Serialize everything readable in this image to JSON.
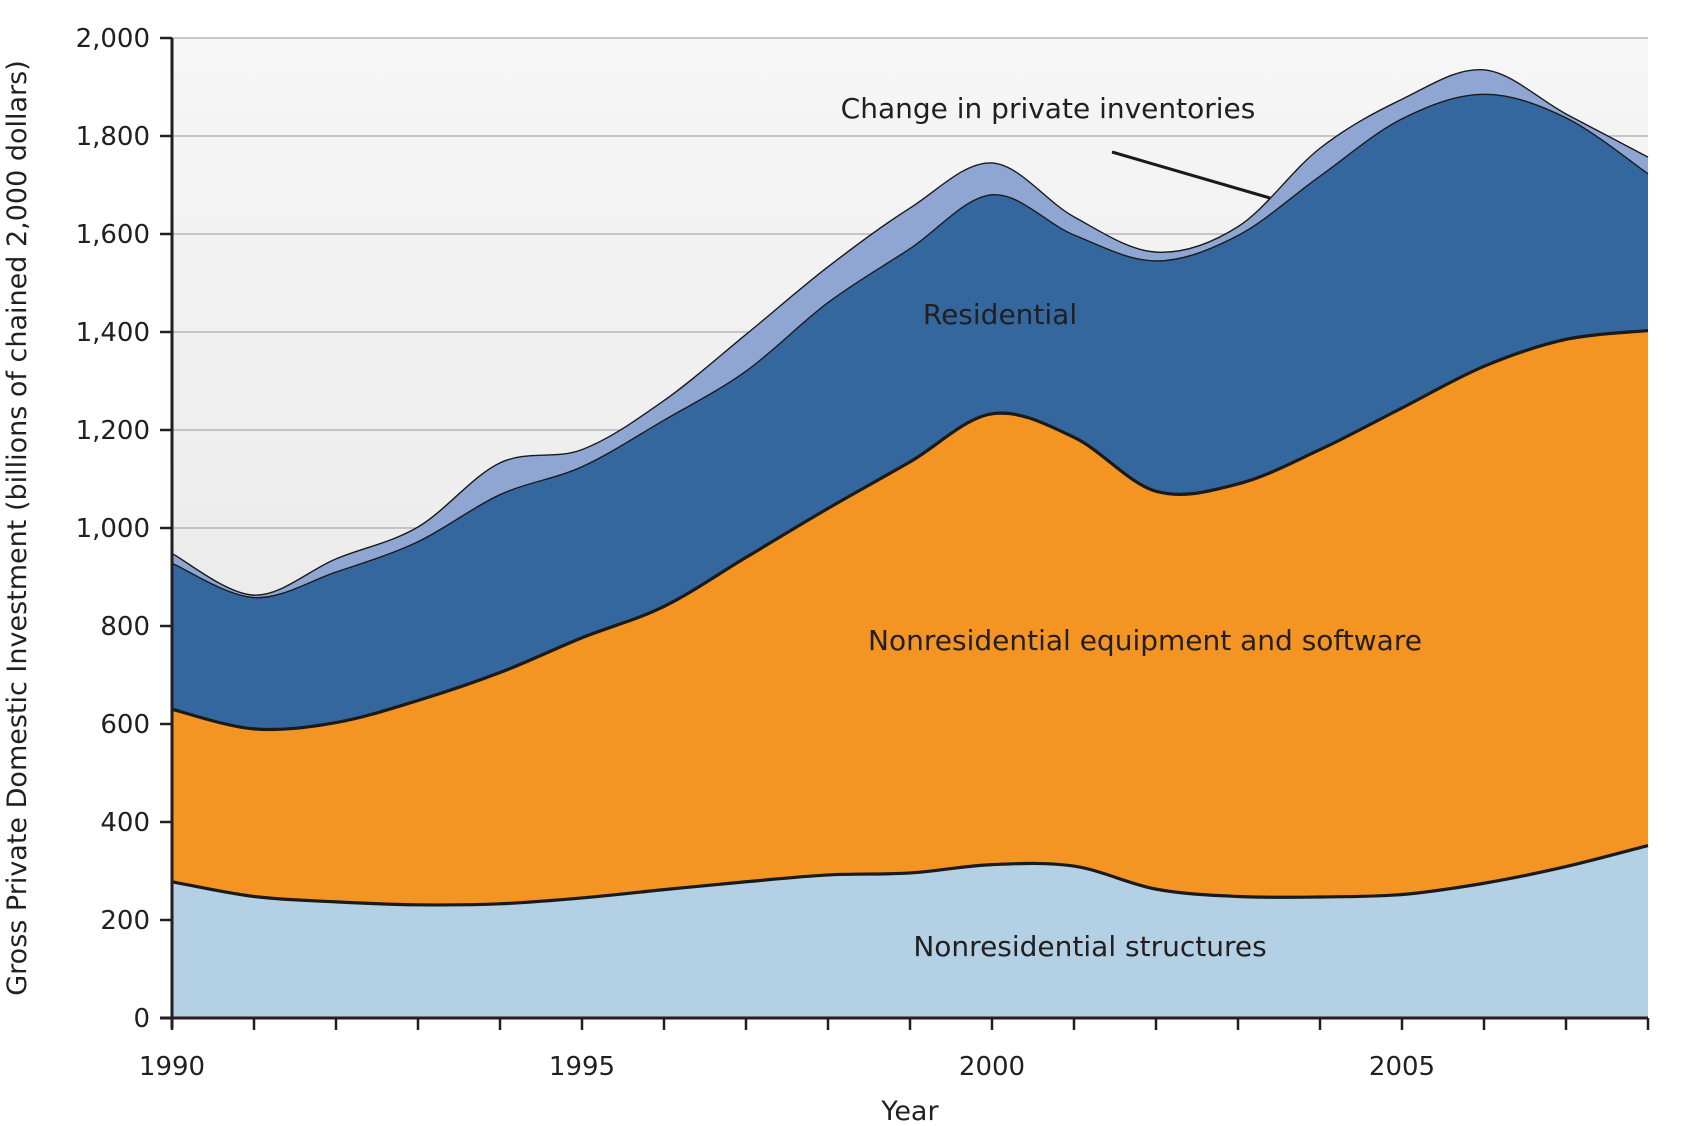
{
  "chart_data": {
    "type": "area",
    "stacked": true,
    "title": "",
    "xlabel": "Year",
    "ylabel": "Gross Private Domestic Investment (billions of chained 2,000 dollars)",
    "xlim": [
      1990,
      2008
    ],
    "ylim": [
      0,
      2000
    ],
    "x_ticks": [
      1990,
      1995,
      2000,
      2005
    ],
    "x_tick_labels": [
      "1990",
      "1995",
      "2000",
      "2005"
    ],
    "y_ticks": [
      0,
      200,
      400,
      600,
      800,
      1000,
      1200,
      1400,
      1600,
      1800,
      2000
    ],
    "y_tick_labels": [
      "0",
      "200",
      "400",
      "600",
      "800",
      "1,000",
      "1,200",
      "1,400",
      "1,600",
      "1,800",
      "2,000"
    ],
    "grid": true,
    "x": [
      1990,
      1991,
      1992,
      1993,
      1994,
      1995,
      1996,
      1997,
      1998,
      1999,
      2000,
      2001,
      2002,
      2003,
      2004,
      2005,
      2006,
      2007,
      2008
    ],
    "cumulative_totals": true,
    "series": [
      {
        "name": "Nonresidential structures",
        "color": "#b3d0e4",
        "values": [
          278,
          248,
          237,
          231,
          233,
          245,
          262,
          278,
          292,
          296,
          313,
          310,
          263,
          248,
          247,
          252,
          275,
          309,
          352
        ]
      },
      {
        "name": "Nonresidential equipment and software",
        "color": "#f39423",
        "values": [
          630,
          590,
          603,
          648,
          705,
          776,
          840,
          940,
          1040,
          1135,
          1233,
          1185,
          1075,
          1090,
          1160,
          1245,
          1330,
          1385,
          1403
        ]
      },
      {
        "name": "Residential",
        "color": "#35679f",
        "values": [
          928,
          858,
          910,
          972,
          1068,
          1125,
          1220,
          1320,
          1460,
          1570,
          1680,
          1598,
          1545,
          1597,
          1718,
          1835,
          1885,
          1837,
          1723
        ]
      },
      {
        "name": "Change in private inventories",
        "color": "#8fa6d2",
        "values": [
          948,
          863,
          937,
          1002,
          1133,
          1160,
          1260,
          1395,
          1533,
          1653,
          1745,
          1635,
          1563,
          1615,
          1775,
          1875,
          1935,
          1845,
          1757
        ]
      }
    ],
    "annotations": [
      {
        "text": "Change in private inventories",
        "series": "Change in private inventories"
      },
      {
        "text": "Residential",
        "series": "Residential"
      },
      {
        "text": "Nonresidential equipment and software",
        "series": "Nonresidential equipment and software"
      },
      {
        "text": "Nonresidential structures",
        "series": "Nonresidential structures"
      }
    ]
  }
}
